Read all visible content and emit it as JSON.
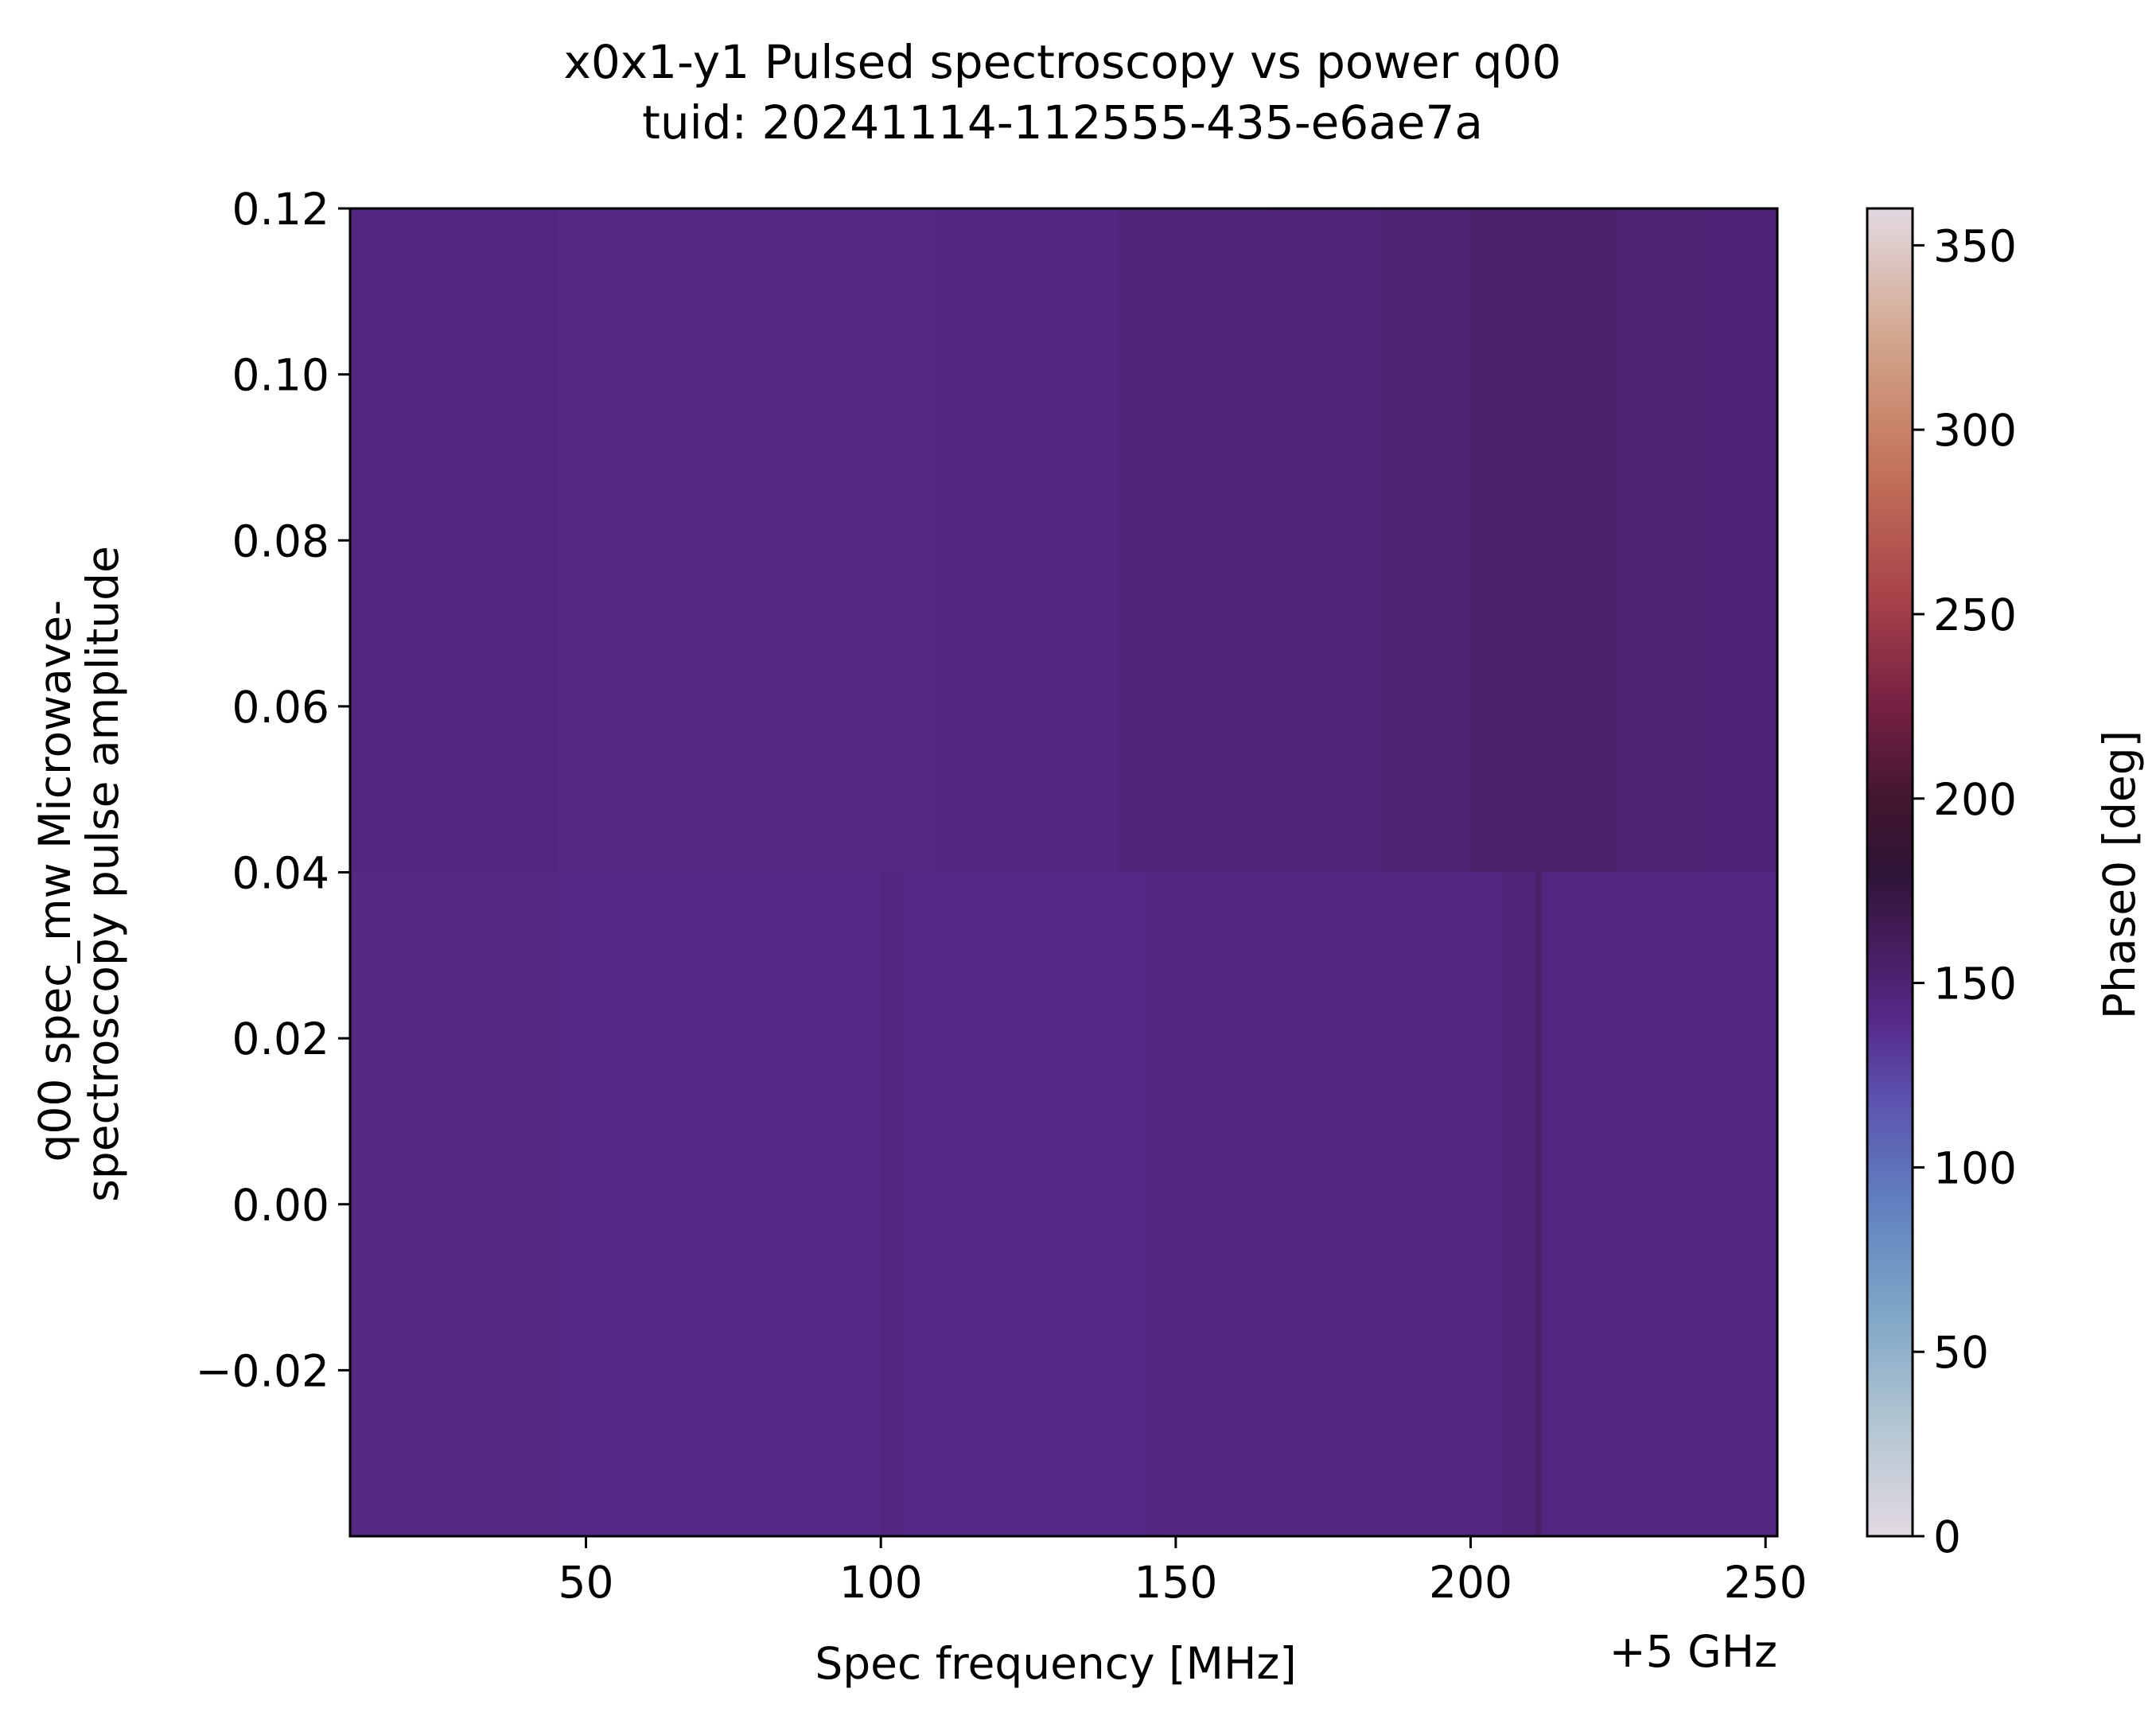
{
  "chart_data": {
    "type": "heatmap",
    "title": "x0x1-y1 Pulsed spectroscopy vs power q00",
    "subtitle": "tuid: 20241114-112555-435-e6ae7a",
    "xlabel": "Spec frequency [MHz]",
    "x_offset_label": "+5 GHz",
    "ylabel_lines": [
      "q00 spec_mw Microwave-",
      "spectroscopy pulse amplitude"
    ],
    "xlim": [
      10,
      252
    ],
    "ylim": [
      -0.04,
      0.12
    ],
    "xticks": [
      {
        "value": 50,
        "label": "50"
      },
      {
        "value": 100,
        "label": "100"
      },
      {
        "value": 150,
        "label": "150"
      },
      {
        "value": 200,
        "label": "200"
      },
      {
        "value": 250,
        "label": "250"
      }
    ],
    "yticks": [
      {
        "value": -0.02,
        "label": "−0.02"
      },
      {
        "value": 0.0,
        "label": "0.00"
      },
      {
        "value": 0.02,
        "label": "0.02"
      },
      {
        "value": 0.04,
        "label": "0.04"
      },
      {
        "value": 0.06,
        "label": "0.06"
      },
      {
        "value": 0.08,
        "label": "0.08"
      },
      {
        "value": 0.1,
        "label": "0.10"
      },
      {
        "value": 0.12,
        "label": "0.12"
      }
    ],
    "colorbar": {
      "label": "Phase0 [deg]",
      "range": [
        0,
        360
      ],
      "colormap": "twilight",
      "ticks": [
        {
          "value": 0,
          "label": "0"
        },
        {
          "value": 50,
          "label": "50"
        },
        {
          "value": 100,
          "label": "100"
        },
        {
          "value": 150,
          "label": "150"
        },
        {
          "value": 200,
          "label": "200"
        },
        {
          "value": 250,
          "label": "250"
        },
        {
          "value": 300,
          "label": "300"
        },
        {
          "value": 350,
          "label": "350"
        }
      ],
      "stops": [
        {
          "value": 0,
          "color": "#e2d9e2"
        },
        {
          "value": 30,
          "color": "#b3c6d2"
        },
        {
          "value": 60,
          "color": "#7fa7c6"
        },
        {
          "value": 90,
          "color": "#6181c0"
        },
        {
          "value": 120,
          "color": "#5c50ad"
        },
        {
          "value": 140,
          "color": "#562989"
        },
        {
          "value": 160,
          "color": "#461d5e"
        },
        {
          "value": 180,
          "color": "#2f1436"
        },
        {
          "value": 200,
          "color": "#42162f"
        },
        {
          "value": 225,
          "color": "#762043"
        },
        {
          "value": 255,
          "color": "#a8434a"
        },
        {
          "value": 290,
          "color": "#c3745a"
        },
        {
          "value": 325,
          "color": "#d2a78d"
        },
        {
          "value": 360,
          "color": "#e2d9e2"
        }
      ]
    },
    "rows": [
      {
        "y_range": [
          -0.04,
          0.04
        ],
        "segments": [
          {
            "x": [
              10,
              45
            ],
            "phase": 143
          },
          {
            "x": [
              45,
              100
            ],
            "phase": 142
          },
          {
            "x": [
              100,
              104
            ],
            "phase": 145
          },
          {
            "x": [
              104,
              145
            ],
            "phase": 142
          },
          {
            "x": [
              145,
              148
            ],
            "phase": 145
          },
          {
            "x": [
              148,
              205
            ],
            "phase": 144
          },
          {
            "x": [
              205,
              211
            ],
            "phase": 146
          },
          {
            "x": [
              211,
              212
            ],
            "phase": 155
          },
          {
            "x": [
              212,
              252
            ],
            "phase": 145
          }
        ]
      },
      {
        "y_range": [
          0.04,
          0.12
        ],
        "segments": [
          {
            "x": [
              10,
              33
            ],
            "phase": 144
          },
          {
            "x": [
              33,
              45
            ],
            "phase": 145
          },
          {
            "x": [
              45,
              80
            ],
            "phase": 143
          },
          {
            "x": [
              80,
              110
            ],
            "phase": 143
          },
          {
            "x": [
              110,
              140
            ],
            "phase": 144
          },
          {
            "x": [
              140,
              165
            ],
            "phase": 146
          },
          {
            "x": [
              165,
              185
            ],
            "phase": 148
          },
          {
            "x": [
              185,
              200
            ],
            "phase": 150
          },
          {
            "x": [
              200,
              225
            ],
            "phase": 153
          },
          {
            "x": [
              225,
              240
            ],
            "phase": 150
          },
          {
            "x": [
              240,
              252
            ],
            "phase": 149
          }
        ]
      }
    ]
  }
}
